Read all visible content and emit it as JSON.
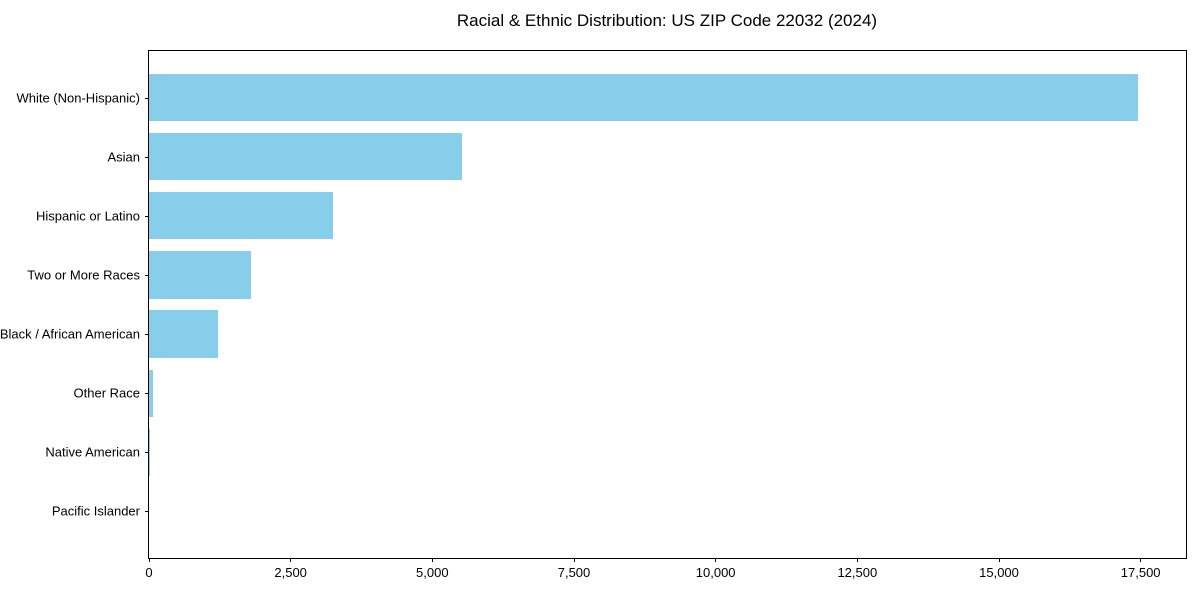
{
  "figure": {
    "background": "#ffffff"
  },
  "chart_data": {
    "type": "bar",
    "orientation": "horizontal",
    "title": "Racial & Ethnic Distribution: US ZIP Code 22032 (2024)",
    "categories": [
      "White (Non-Hispanic)",
      "Asian",
      "Hispanic or Latino",
      "Two or More Races",
      "Black / African American",
      "Other Race",
      "Native American",
      "Pacific Islander"
    ],
    "values": [
      17450,
      5530,
      3240,
      1800,
      1220,
      70,
      18,
      0
    ],
    "xlabel": "",
    "ylabel": "",
    "xlim": [
      0,
      18300
    ],
    "xticks": [
      0,
      2500,
      5000,
      7500,
      10000,
      12500,
      15000,
      17500
    ],
    "xtick_labels": [
      "0",
      "2,500",
      "5,000",
      "7,500",
      "10,000",
      "12,500",
      "15,000",
      "17,500"
    ],
    "bar_color": "#87CEEB",
    "axis_color": "#000000",
    "text_color": "#000000",
    "grid": false,
    "legend": null,
    "bar_height_ratio": 0.8
  }
}
